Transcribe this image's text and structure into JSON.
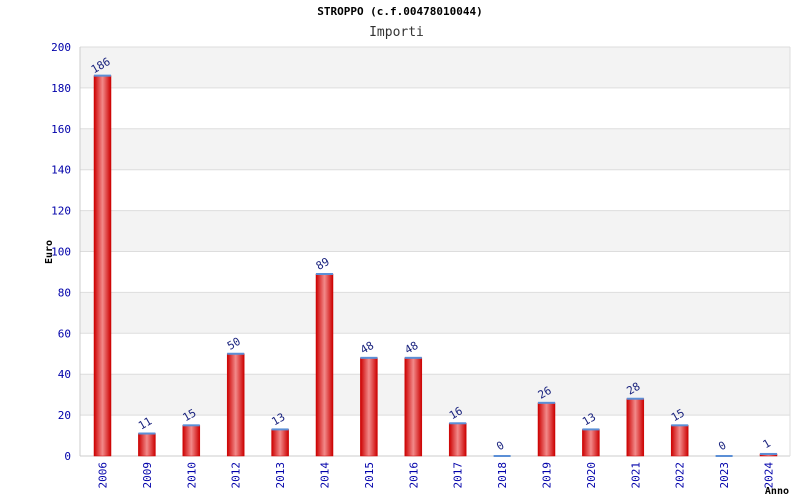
{
  "title": "STROPPO (c.f.00478010044)",
  "subtitle": "Importi",
  "chart_data": {
    "type": "bar",
    "categories": [
      "2006",
      "2009",
      "2010",
      "2012",
      "2013",
      "2014",
      "2015",
      "2016",
      "2017",
      "2018",
      "2019",
      "2020",
      "2021",
      "2022",
      "2023",
      "2024"
    ],
    "values": [
      186,
      11,
      15,
      50,
      13,
      89,
      48,
      48,
      16,
      0,
      26,
      13,
      28,
      15,
      0,
      1
    ],
    "data_labels": [
      "186",
      "11",
      "15",
      "50",
      "13",
      "89",
      "48",
      "48",
      "16",
      "0",
      "26",
      "13",
      "28",
      "15",
      "0",
      "1"
    ],
    "title": "STROPPO (c.f.00478010044)",
    "subtitle": "Importi",
    "xlabel": "Anno",
    "ylabel": "Euro",
    "ylim": [
      0,
      200
    ],
    "yticks": [
      0,
      20,
      40,
      60,
      80,
      100,
      120,
      140,
      160,
      180,
      200
    ],
    "grid": true,
    "legend": "none",
    "colors": {
      "bar_edge": "#cc0000",
      "bar_mid": "#f28a8a",
      "bar_top": "#5b8fd6",
      "band_shaded": "#f3f3f3",
      "band_plain": "#ffffff",
      "tick_text": "#0000aa",
      "value_text": "#1a237e"
    }
  }
}
